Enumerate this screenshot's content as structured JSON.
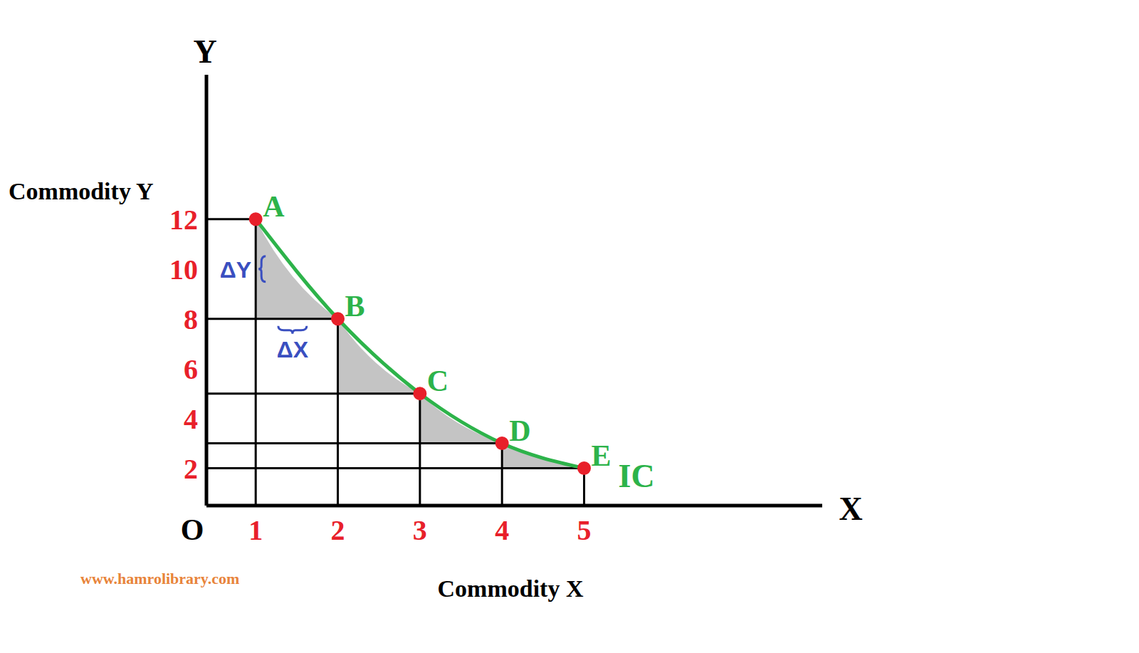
{
  "chart_data": {
    "type": "line",
    "x_label": "Commodity X",
    "y_label": "Commodity Y",
    "x_axis_name": "X",
    "y_axis_name": "Y",
    "origin_label": "O",
    "x": [
      1,
      2,
      3,
      4,
      5
    ],
    "point_labels": [
      "A",
      "B",
      "C",
      "D",
      "E"
    ],
    "series": [
      {
        "name": "IC",
        "color": "#2db34a",
        "marker": "circle",
        "values": [
          12,
          8,
          5,
          3,
          2
        ]
      }
    ],
    "xlim": [
      0.4,
      7.9
    ],
    "xticks": [
      1,
      2,
      3,
      4,
      5
    ],
    "ylim": [
      0.5,
      17.8
    ],
    "yticks": [
      2,
      4,
      6,
      8,
      10,
      12
    ],
    "annotations": [
      "ΔY",
      "ΔX"
    ],
    "source": "www.hamrolibrary.com",
    "grid": false
  }
}
